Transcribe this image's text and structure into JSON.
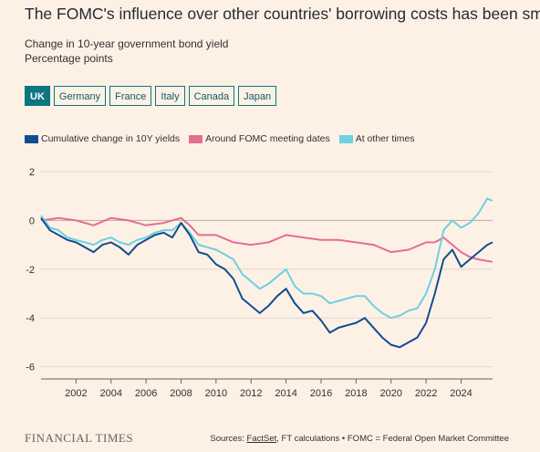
{
  "title": "The FOMC's influence over other countries' borrowing costs has been small",
  "subtitle_line1": "Change in 10-year government bond yield",
  "subtitle_line2": "Percentage points",
  "tabs": [
    {
      "label": "UK",
      "active": true
    },
    {
      "label": "Germany",
      "active": false
    },
    {
      "label": "France",
      "active": false
    },
    {
      "label": "Italy",
      "active": false
    },
    {
      "label": "Canada",
      "active": false
    },
    {
      "label": "Japan",
      "active": false
    }
  ],
  "brand": "FINANCIAL TIMES",
  "source": {
    "prefix": "Sources: ",
    "factset": "FactSet",
    "rest": ", FT calculations • FOMC = Federal Open Market Committee"
  },
  "colors": {
    "background": "#fdf1e6",
    "cumulative": "#0f4d92",
    "fomc": "#e36f93",
    "other": "#6dd1e0",
    "tab_accent": "#0d7680"
  },
  "chart_data": {
    "type": "line",
    "title": "",
    "xlabel": "",
    "ylabel": "",
    "xlim": [
      2000.0,
      2025.8
    ],
    "ylim": [
      -6.5,
      2
    ],
    "y_ticks": [
      2,
      0,
      -2,
      -4,
      -6
    ],
    "x_ticks": [
      2002,
      2004,
      2006,
      2008,
      2010,
      2012,
      2014,
      2016,
      2018,
      2020,
      2022,
      2024
    ],
    "grid": true,
    "legend": "top-left",
    "series": [
      {
        "name": "Cumulative change in 10Y yields",
        "color": "#0f4d92",
        "x": [
          2000.0,
          2000.5,
          2001.0,
          2001.5,
          2002.0,
          2002.5,
          2003.0,
          2003.5,
          2004.0,
          2004.5,
          2005.0,
          2005.5,
          2006.0,
          2006.5,
          2007.0,
          2007.5,
          2008.0,
          2008.5,
          2009.0,
          2009.5,
          2010.0,
          2010.5,
          2011.0,
          2011.5,
          2012.0,
          2012.5,
          2013.0,
          2013.5,
          2014.0,
          2014.5,
          2015.0,
          2015.5,
          2016.0,
          2016.5,
          2017.0,
          2017.5,
          2018.0,
          2018.5,
          2019.0,
          2019.5,
          2020.0,
          2020.5,
          2021.0,
          2021.5,
          2022.0,
          2022.5,
          2023.0,
          2023.5,
          2024.0,
          2024.5,
          2025.0,
          2025.5,
          2025.8
        ],
        "y": [
          0.1,
          -0.4,
          -0.6,
          -0.8,
          -0.9,
          -1.1,
          -1.3,
          -1.0,
          -0.9,
          -1.1,
          -1.4,
          -1.0,
          -0.8,
          -0.6,
          -0.5,
          -0.7,
          -0.1,
          -0.6,
          -1.3,
          -1.4,
          -1.8,
          -2.0,
          -2.4,
          -3.2,
          -3.5,
          -3.8,
          -3.5,
          -3.1,
          -2.8,
          -3.4,
          -3.8,
          -3.7,
          -4.1,
          -4.6,
          -4.4,
          -4.3,
          -4.2,
          -4.0,
          -4.4,
          -4.8,
          -5.1,
          -5.2,
          -5.0,
          -4.8,
          -4.2,
          -3.0,
          -1.6,
          -1.2,
          -1.9,
          -1.6,
          -1.3,
          -1.0,
          -0.9
        ]
      },
      {
        "name": "Around FOMC meeting dates",
        "color": "#e36f93",
        "x": [
          2000.0,
          2001.0,
          2002.0,
          2003.0,
          2004.0,
          2005.0,
          2006.0,
          2007.0,
          2008.0,
          2008.5,
          2009.0,
          2010.0,
          2011.0,
          2012.0,
          2013.0,
          2014.0,
          2015.0,
          2016.0,
          2017.0,
          2018.0,
          2019.0,
          2020.0,
          2021.0,
          2022.0,
          2022.5,
          2023.0,
          2023.5,
          2024.0,
          2024.5,
          2025.0,
          2025.8
        ],
        "y": [
          0.0,
          0.1,
          0.0,
          -0.2,
          0.1,
          0.0,
          -0.2,
          -0.1,
          0.1,
          -0.2,
          -0.6,
          -0.6,
          -0.9,
          -1.0,
          -0.9,
          -0.6,
          -0.7,
          -0.8,
          -0.8,
          -0.9,
          -1.0,
          -1.3,
          -1.2,
          -0.9,
          -0.9,
          -0.7,
          -1.0,
          -1.3,
          -1.5,
          -1.6,
          -1.7
        ]
      },
      {
        "name": "At other times",
        "color": "#6dd1e0",
        "x": [
          2000.0,
          2000.5,
          2001.0,
          2001.5,
          2002.0,
          2002.5,
          2003.0,
          2003.5,
          2004.0,
          2004.5,
          2005.0,
          2005.5,
          2006.0,
          2006.5,
          2007.0,
          2007.5,
          2008.0,
          2008.5,
          2009.0,
          2009.5,
          2010.0,
          2010.5,
          2011.0,
          2011.5,
          2012.0,
          2012.5,
          2013.0,
          2013.5,
          2014.0,
          2014.5,
          2015.0,
          2015.5,
          2016.0,
          2016.5,
          2017.0,
          2017.5,
          2018.0,
          2018.5,
          2019.0,
          2019.5,
          2020.0,
          2020.5,
          2021.0,
          2021.5,
          2022.0,
          2022.5,
          2023.0,
          2023.5,
          2024.0,
          2024.5,
          2025.0,
          2025.5,
          2025.8
        ],
        "y": [
          0.2,
          -0.3,
          -0.4,
          -0.7,
          -0.8,
          -0.9,
          -1.0,
          -0.8,
          -0.7,
          -0.9,
          -1.0,
          -0.8,
          -0.7,
          -0.5,
          -0.4,
          -0.4,
          -0.1,
          -0.5,
          -1.0,
          -1.1,
          -1.2,
          -1.4,
          -1.6,
          -2.2,
          -2.5,
          -2.8,
          -2.6,
          -2.3,
          -2.0,
          -2.7,
          -3.0,
          -3.0,
          -3.1,
          -3.4,
          -3.3,
          -3.2,
          -3.1,
          -3.1,
          -3.5,
          -3.8,
          -4.0,
          -3.9,
          -3.7,
          -3.6,
          -3.0,
          -2.0,
          -0.4,
          0.0,
          -0.3,
          -0.1,
          0.3,
          0.9,
          0.8
        ]
      }
    ]
  }
}
